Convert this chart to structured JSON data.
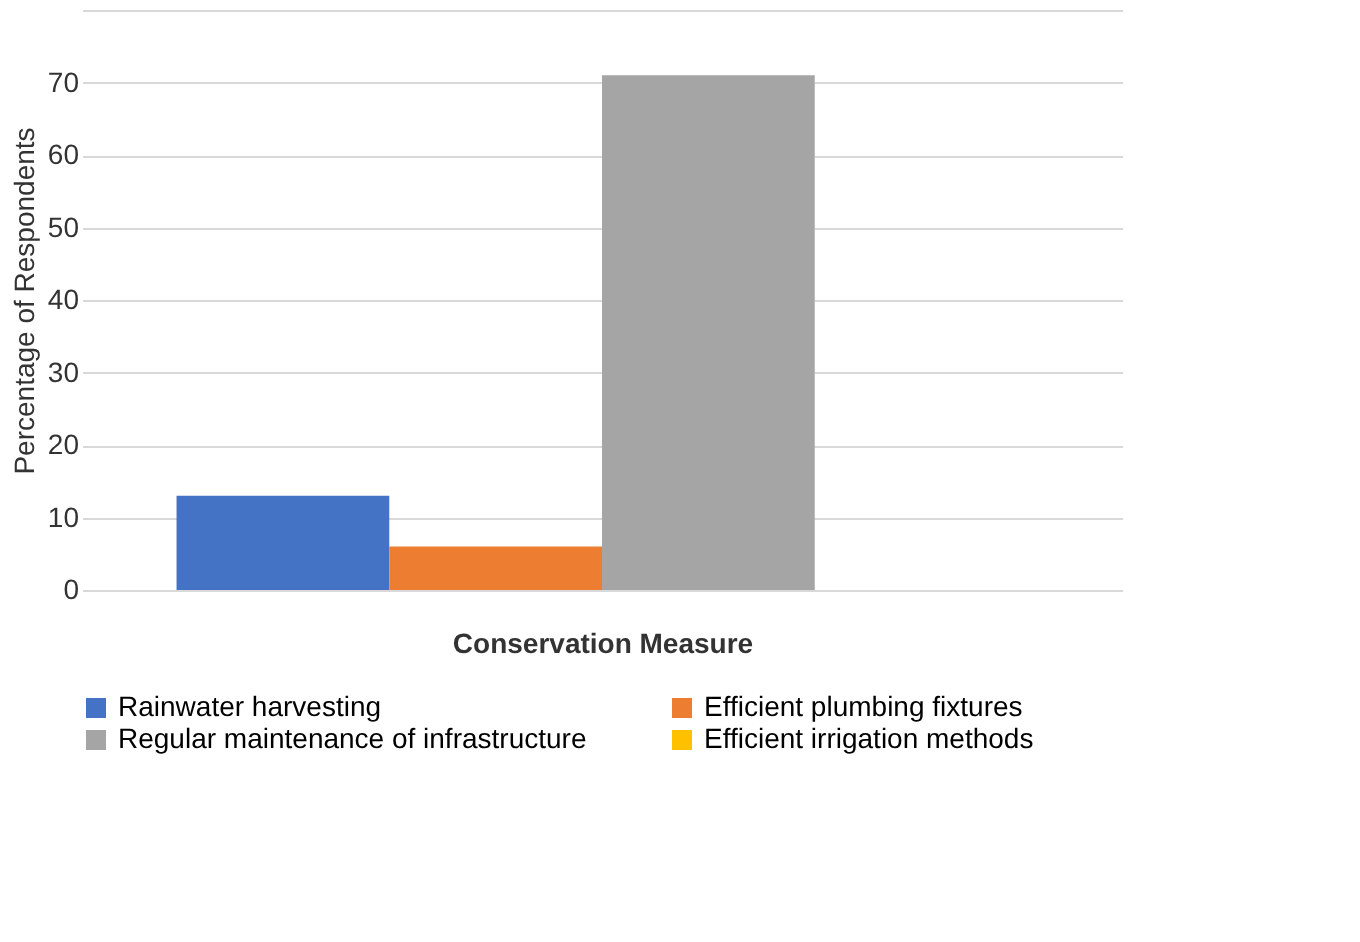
{
  "chart_data": {
    "type": "bar",
    "xlabel": "Conservation Measure",
    "ylabel": "Percentage of Respondents",
    "categories": [
      null
    ],
    "series": [
      {
        "name": "Rainwater harvesting",
        "color": "#4472c4",
        "values": [
          13
        ]
      },
      {
        "name": "Efficient plumbing fixtures",
        "color": "#ed7d31",
        "values": [
          6
        ]
      },
      {
        "name": "Regular maintenance of infrastructure",
        "color": "#a5a5a5",
        "values": [
          71
        ]
      },
      {
        "name": "Efficient irrigation methods",
        "color": "#ffc000",
        "values": [
          0
        ]
      }
    ],
    "ylim": [
      0,
      80
    ],
    "yticks": [
      0,
      10,
      20,
      30,
      40,
      50,
      60,
      70,
      {
        "value": 80,
        "label": null
      }
    ],
    "grid": "y",
    "legend": "bottom"
  }
}
